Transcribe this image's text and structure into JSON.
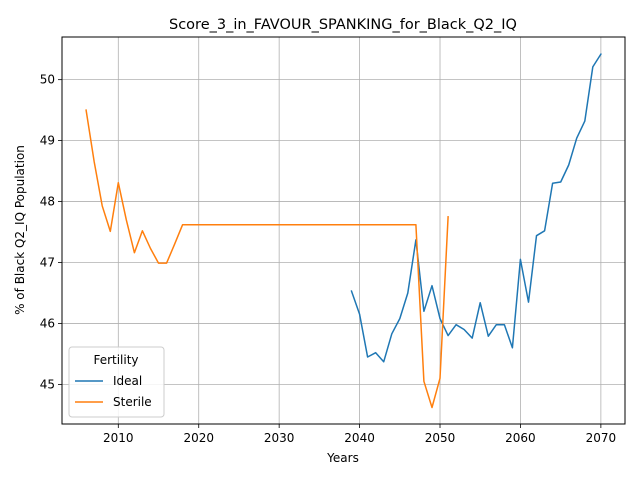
{
  "chart_data": {
    "type": "line",
    "title": "Score_3_in_FAVOUR_SPANKING_for_Black_Q2_IQ",
    "xlabel": "Years",
    "ylabel": "% of Black Q2_IQ Population",
    "xlim": [
      2003,
      2073
    ],
    "ylim": [
      44.35,
      50.7
    ],
    "xticks": [
      2010,
      2020,
      2030,
      2040,
      2050,
      2060,
      2070
    ],
    "yticks": [
      45,
      46,
      47,
      48,
      49,
      50
    ],
    "grid": true,
    "legend": {
      "title": "Fertility",
      "placement": "lower-left"
    },
    "series": [
      {
        "name": "Ideal",
        "color": "#1f77b4",
        "x": [
          2039,
          2040,
          2041,
          2042,
          2043,
          2044,
          2045,
          2046,
          2047,
          2048,
          2049,
          2050,
          2051,
          2052,
          2053,
          2054,
          2055,
          2056,
          2057,
          2058,
          2059,
          2060,
          2061,
          2062,
          2063,
          2064,
          2065,
          2066,
          2067,
          2068,
          2069,
          2070
        ],
        "y": [
          46.53,
          46.15,
          45.45,
          45.52,
          45.37,
          45.83,
          46.08,
          46.5,
          47.37,
          46.2,
          46.62,
          46.08,
          45.8,
          45.98,
          45.9,
          45.76,
          46.34,
          45.79,
          45.98,
          45.98,
          45.6,
          47.05,
          46.35,
          47.44,
          47.52,
          48.3,
          48.32,
          48.6,
          49.04,
          49.32,
          50.21,
          50.42
        ]
      },
      {
        "name": "Sterile",
        "color": "#ff7f0e",
        "x": [
          2006,
          2007,
          2008,
          2009,
          2010,
          2011,
          2012,
          2013,
          2014,
          2015,
          2016,
          2017,
          2018,
          2019,
          2020,
          2025,
          2030,
          2035,
          2040,
          2045,
          2046,
          2047,
          2048,
          2049,
          2050,
          2051
        ],
        "y": [
          49.5,
          48.65,
          47.93,
          47.51,
          48.31,
          47.7,
          47.16,
          47.52,
          47.23,
          46.99,
          46.99,
          47.3,
          47.62,
          47.62,
          47.62,
          47.62,
          47.62,
          47.62,
          47.62,
          47.62,
          47.62,
          47.62,
          45.05,
          44.62,
          45.1,
          47.75
        ]
      }
    ]
  }
}
